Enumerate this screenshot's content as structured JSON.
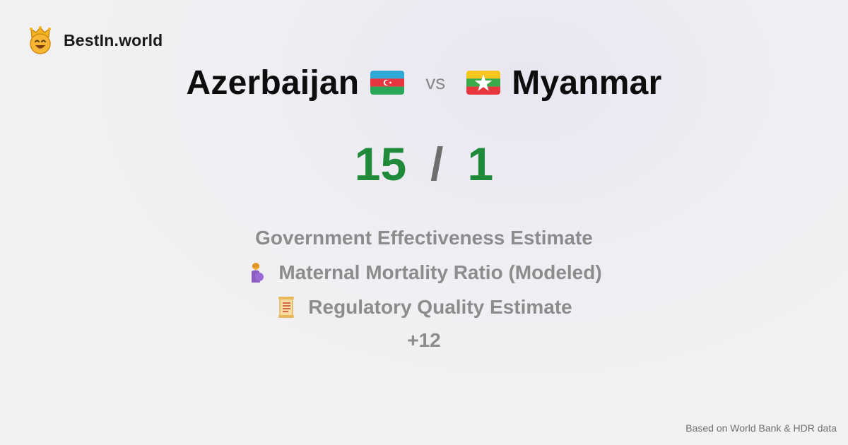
{
  "brand": {
    "name": "BestIn.world",
    "logo_icon": "smiling-crown-icon"
  },
  "comparison": {
    "left_country": "Azerbaijan",
    "left_flag_icon": "azerbaijan-flag-icon",
    "vs_label": "vs",
    "right_country": "Myanmar",
    "right_flag_icon": "myanmar-flag-icon"
  },
  "score": {
    "left": "15",
    "separator": "/",
    "right": "1",
    "color": "#1e8a3a"
  },
  "metrics": [
    {
      "label": "Government Effectiveness Estimate",
      "icon": ""
    },
    {
      "label": "Maternal Mortality Ratio (Modeled)",
      "icon": "pregnant-woman-icon"
    },
    {
      "label": "Regulatory Quality Estimate",
      "icon": "scroll-icon"
    }
  ],
  "more_label": "+12",
  "footer": {
    "source": "Based on World Bank & HDR data"
  }
}
